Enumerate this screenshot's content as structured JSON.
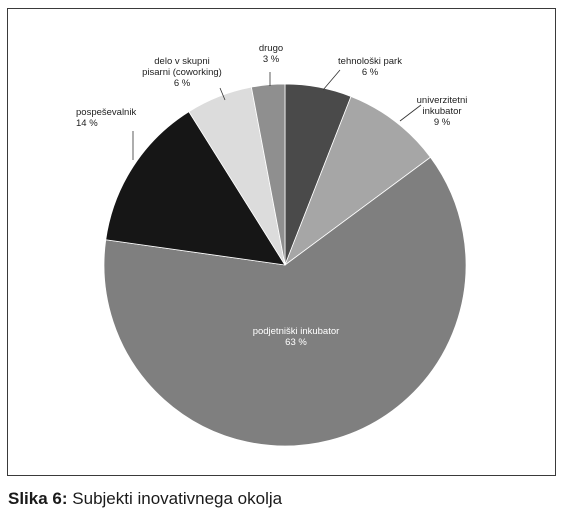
{
  "caption": {
    "label": "Slika 6:",
    "text": "Subjekti inovativnega okolja"
  },
  "chart_data": {
    "type": "pie",
    "title": "",
    "slices": [
      {
        "name": "tehnološki park",
        "value": 6,
        "value_label": "6 %",
        "color": "#4a4a4a"
      },
      {
        "name": "univerzitetni inkubator",
        "value": 9,
        "value_label": "9 %",
        "color": "#a6a6a6"
      },
      {
        "name": "podjetniški inkubator",
        "value": 63,
        "value_label": "63 %",
        "color": "#7f7f7f"
      },
      {
        "name": "pospeševalnik",
        "value": 14,
        "value_label": "14 %",
        "color": "#161616"
      },
      {
        "name": "delo v skupni pisarni (coworking)",
        "value": 6,
        "value_label": "6 %",
        "color": "#dcdcdc"
      },
      {
        "name": "drugo",
        "value": 3,
        "value_label": "3 %",
        "color": "#8f8f8f"
      }
    ]
  }
}
